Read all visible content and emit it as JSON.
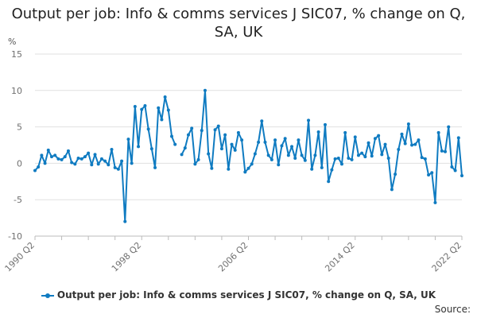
{
  "chart_data": {
    "type": "line",
    "title": "Output per job: Info & comms services J SIC07, % change on Q, SA, UK",
    "y_unit": "%",
    "ylim": [
      -10,
      15
    ],
    "y_ticks": [
      -10,
      -5,
      0,
      5,
      10,
      15
    ],
    "x_ticks": [
      "1990 Q2",
      "1998 Q2",
      "2006 Q2",
      "2014 Q2",
      "2022 Q2"
    ],
    "grid": "horizontal",
    "legend_position": "bottom",
    "source_label": "Source:",
    "colors": {
      "series": "#0f7bc1",
      "grid": "#e0e0e0",
      "axis": "#bbbbbb"
    },
    "x": [
      "1990 Q2",
      "1990 Q3",
      "1990 Q4",
      "1991 Q1",
      "1991 Q2",
      "1991 Q3",
      "1991 Q4",
      "1992 Q1",
      "1992 Q2",
      "1992 Q3",
      "1992 Q4",
      "1993 Q1",
      "1993 Q2",
      "1993 Q3",
      "1993 Q4",
      "1994 Q1",
      "1994 Q2",
      "1994 Q3",
      "1994 Q4",
      "1995 Q1",
      "1995 Q2",
      "1995 Q3",
      "1995 Q4",
      "1996 Q1",
      "1996 Q2",
      "1996 Q3",
      "1996 Q4",
      "1997 Q1",
      "1997 Q2",
      "1997 Q3",
      "1997 Q4",
      "1998 Q1",
      "1998 Q2",
      "1998 Q3",
      "1998 Q4",
      "1999 Q1",
      "1999 Q2",
      "1999 Q3",
      "1999 Q4",
      "2000 Q1",
      "2000 Q2",
      "2000 Q3",
      "2000 Q4",
      "2001 Q1",
      "2001 Q2",
      "2001 Q3",
      "2001 Q4",
      "2002 Q1",
      "2002 Q2",
      "2002 Q3",
      "2002 Q4",
      "2003 Q1",
      "2003 Q2",
      "2003 Q3",
      "2003 Q4",
      "2004 Q1",
      "2004 Q2",
      "2004 Q3",
      "2004 Q4",
      "2005 Q1",
      "2005 Q2",
      "2005 Q3",
      "2005 Q4",
      "2006 Q1",
      "2006 Q2",
      "2006 Q3",
      "2006 Q4",
      "2007 Q1",
      "2007 Q2",
      "2007 Q3",
      "2007 Q4",
      "2008 Q1",
      "2008 Q2",
      "2008 Q3",
      "2008 Q4",
      "2009 Q1",
      "2009 Q2",
      "2009 Q3",
      "2009 Q4",
      "2010 Q1",
      "2010 Q2",
      "2010 Q3",
      "2010 Q4",
      "2011 Q1",
      "2011 Q2",
      "2011 Q3",
      "2011 Q4",
      "2012 Q1",
      "2012 Q2",
      "2012 Q3",
      "2012 Q4",
      "2013 Q1",
      "2013 Q2",
      "2013 Q3",
      "2013 Q4",
      "2014 Q1",
      "2014 Q2",
      "2014 Q3",
      "2014 Q4",
      "2015 Q1",
      "2015 Q2",
      "2015 Q3",
      "2015 Q4",
      "2016 Q1",
      "2016 Q2",
      "2016 Q3",
      "2016 Q4",
      "2017 Q1",
      "2017 Q2",
      "2017 Q3",
      "2017 Q4",
      "2018 Q1",
      "2018 Q2",
      "2018 Q3",
      "2018 Q4",
      "2019 Q1",
      "2019 Q2",
      "2019 Q3",
      "2019 Q4",
      "2020 Q1",
      "2020 Q2",
      "2020 Q3",
      "2020 Q4",
      "2021 Q1",
      "2021 Q2",
      "2021 Q3",
      "2021 Q4",
      "2022 Q1",
      "2022 Q2"
    ],
    "series": [
      {
        "name": "Output per job: Info & comms services J SIC07, % change on Q, SA, UK",
        "values": [
          -1.0,
          -0.5,
          1.1,
          0.0,
          1.8,
          0.9,
          1.1,
          0.6,
          0.5,
          0.9,
          1.7,
          0.1,
          -0.1,
          0.7,
          0.6,
          0.9,
          1.4,
          -0.2,
          1.2,
          -0.1,
          0.6,
          0.3,
          -0.2,
          1.9,
          -0.6,
          -0.8,
          0.3,
          -8.0,
          3.3,
          0.0,
          7.8,
          2.3,
          7.4,
          7.9,
          4.7,
          2.0,
          -0.6,
          7.6,
          6.0,
          9.1,
          7.3,
          3.7,
          2.6,
          null,
          1.2,
          2.1,
          3.9,
          4.8,
          -0.1,
          0.5,
          4.5,
          10.0,
          1.3,
          -0.7,
          4.6,
          5.1,
          2.0,
          3.9,
          -0.8,
          2.6,
          1.8,
          4.2,
          3.2,
          -1.2,
          -0.7,
          -0.1,
          1.3,
          2.9,
          5.8,
          2.9,
          1.1,
          0.5,
          3.2,
          -0.2,
          2.4,
          3.4,
          1.1,
          2.3,
          0.7,
          3.2,
          1.1,
          0.4,
          5.9,
          -0.8,
          1.1,
          4.3,
          -0.6,
          5.3,
          -2.5,
          -0.9,
          0.6,
          0.7,
          -0.1,
          4.2,
          0.7,
          0.5,
          3.6,
          1.1,
          1.4,
          0.9,
          2.8,
          1.0,
          3.4,
          3.8,
          1.2,
          2.6,
          0.7,
          -3.6,
          -1.5,
          1.9,
          4.0,
          2.7,
          5.4,
          2.5,
          2.6,
          3.2,
          0.8,
          0.6,
          -1.6,
          -1.3,
          -5.4,
          4.2,
          1.7,
          1.6,
          5.0,
          -0.5,
          -1.0,
          3.5,
          -1.7
        ]
      }
    ]
  }
}
